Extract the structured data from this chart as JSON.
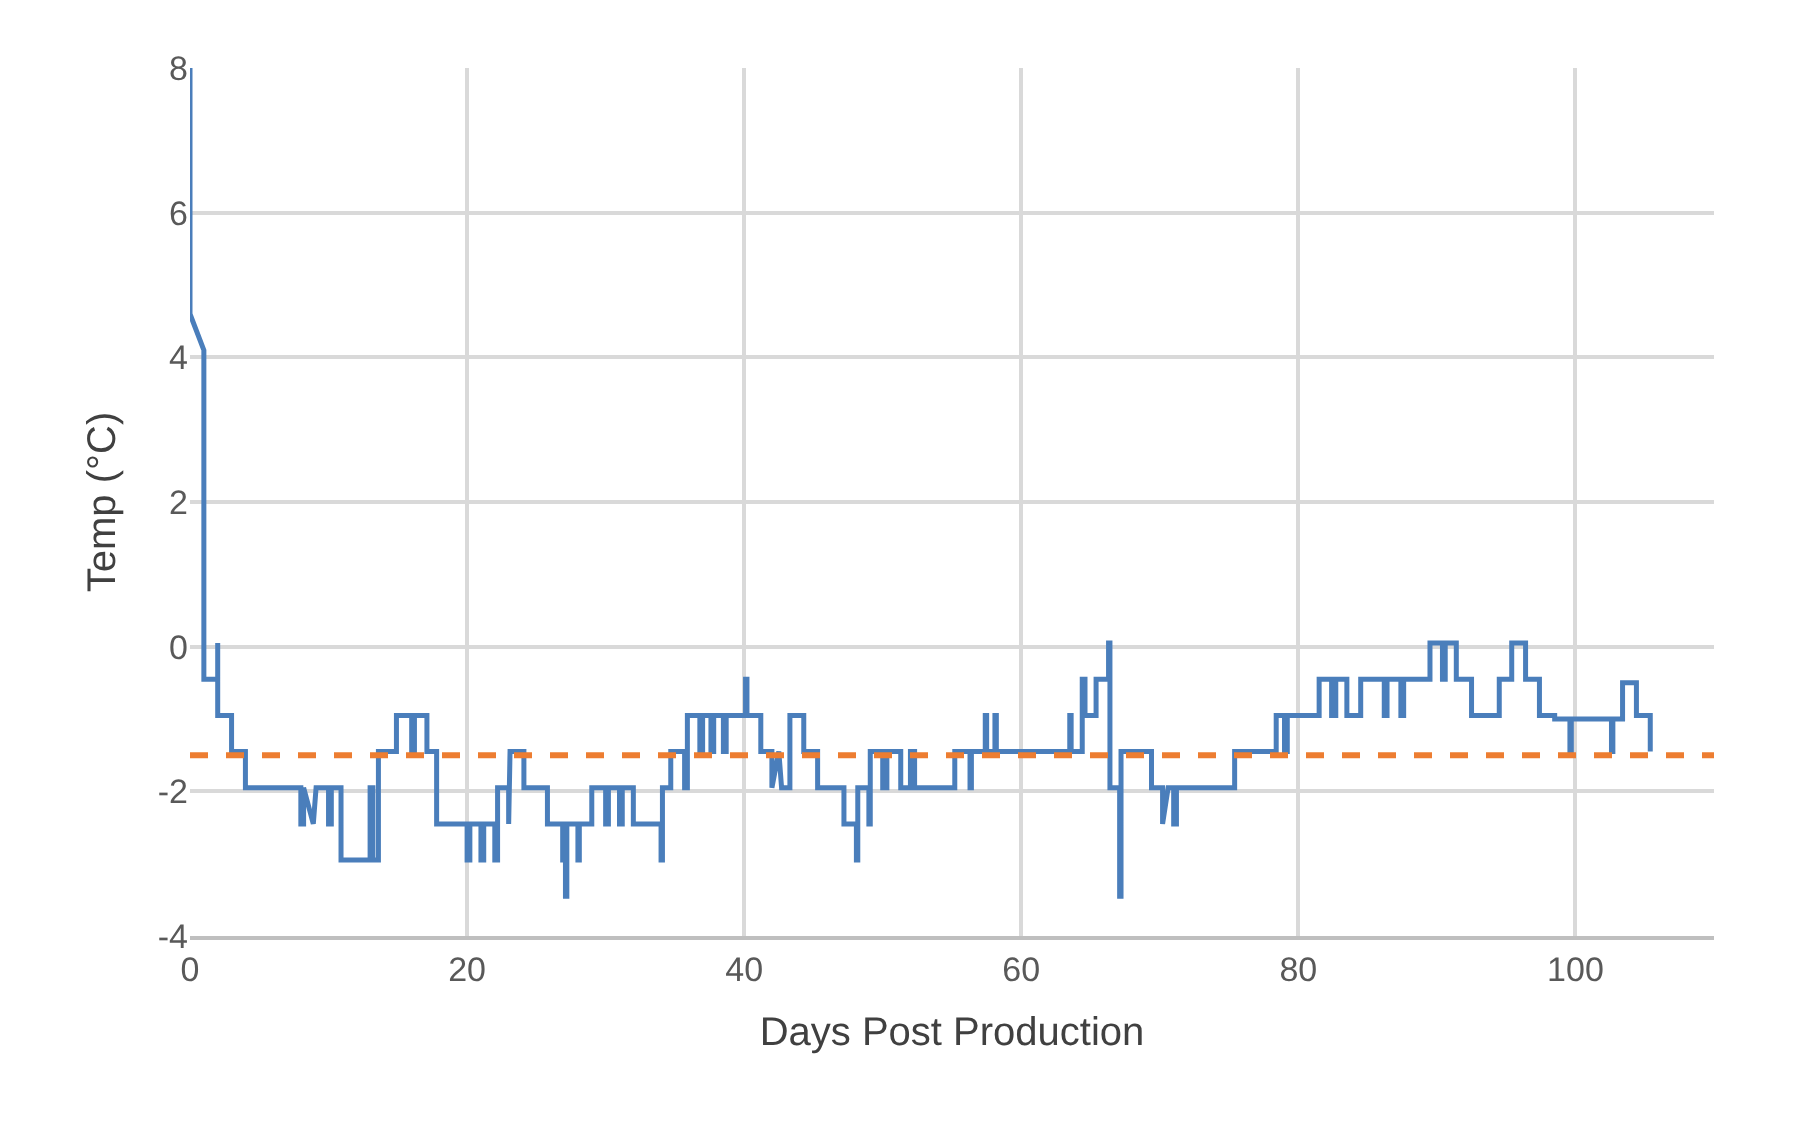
{
  "chart_data": {
    "type": "line",
    "xlabel": "Days Post Production",
    "ylabel": "Temp (°C)",
    "xlim": [
      0,
      110
    ],
    "xticks": [
      0,
      20,
      40,
      60,
      80,
      100
    ],
    "ylim": [
      -4,
      8
    ],
    "yticks": [
      -4,
      -2,
      0,
      2,
      4,
      6,
      8
    ],
    "grid": true,
    "series": [
      {
        "color": "#4a7ebb",
        "line_style": "solid",
        "x": [
          0,
          0,
          1,
          1,
          2,
          2,
          2,
          3,
          3,
          4,
          4,
          8,
          8,
          8.2,
          8.2,
          8.9,
          9.1,
          10,
          10,
          10.2,
          10.2,
          10.9,
          10.9,
          13,
          13,
          13.2,
          13.2,
          13.6,
          13.6,
          14.9,
          14.9,
          16,
          16,
          16.2,
          16.2,
          17.1,
          17.1,
          17.8,
          17.8,
          20,
          20,
          20.2,
          20.2,
          21,
          21,
          21.2,
          21.2,
          22,
          22,
          22.2,
          22.2,
          23,
          23,
          23.1,
          24.1,
          24.1,
          25.8,
          25.8,
          26.9,
          26.9,
          27.1,
          27.1,
          27.2,
          27.2,
          28,
          28,
          28.1,
          28.1,
          29,
          29,
          30,
          30,
          30.2,
          30.2,
          31,
          31,
          31.2,
          31.2,
          32,
          32,
          34,
          34,
          34.1,
          34.1,
          34.7,
          34.7,
          35.7,
          35.7,
          35.9,
          35.9,
          36.8,
          36.8,
          37,
          37,
          37.6,
          37.6,
          37.8,
          37.8,
          38.5,
          38.5,
          38.7,
          38.7,
          40.1,
          40.1,
          40.2,
          40.2,
          41.2,
          41.2,
          42,
          42,
          42.5,
          42.7,
          43.3,
          43.3,
          44.3,
          44.3,
          45.3,
          45.3,
          47.2,
          47.2,
          48.1,
          48.1,
          48.2,
          48.2,
          49,
          49,
          49.1,
          49.1,
          50,
          50,
          50.3,
          50.3,
          51.3,
          51.3,
          52,
          52,
          52.3,
          52.3,
          55.2,
          55.2,
          56.3,
          56.3,
          56.4,
          56.4,
          57.4,
          57.4,
          57.5,
          57.5,
          58.1,
          58.1,
          58.2,
          58.2,
          63.5,
          63.5,
          63.6,
          63.6,
          64.4,
          64.4,
          64.6,
          64.6,
          65.4,
          65.4,
          66.3,
          66.3,
          66.4,
          66.4,
          67.1,
          67.1,
          67.2,
          67.2,
          69.4,
          69.4,
          70.2,
          70.2,
          70.6,
          71,
          71,
          71.2,
          71.2,
          75.4,
          75.4,
          78.4,
          78.4,
          79,
          79,
          79.2,
          79.2,
          81.5,
          81.5,
          82.4,
          82.4,
          82.7,
          82.7,
          83.5,
          83.5,
          84.5,
          84.5,
          86.2,
          86.2,
          86.4,
          86.4,
          87.4,
          87.4,
          87.6,
          87.6,
          89.5,
          89.5,
          90.4,
          90.4,
          90.6,
          90.6,
          91.4,
          91.4,
          92.5,
          92.5,
          94.5,
          94.5,
          95.4,
          95.4,
          96.4,
          96.4,
          97.4,
          97.4,
          98.5,
          98.5,
          99.6,
          99.6,
          99.7,
          99.7,
          102.6,
          102.6,
          102.7,
          102.7,
          103.4,
          103.4,
          104.4,
          104.4,
          105.4,
          105.4
        ],
        "values": [
          8,
          4.6,
          4.1,
          -0.45,
          -0.45,
          0.05,
          -0.95,
          -0.95,
          -1.45,
          -1.45,
          -1.95,
          -1.95,
          -2.45,
          -2.45,
          -1.95,
          -2.45,
          -1.95,
          -1.95,
          -2.45,
          -2.45,
          -1.95,
          -1.95,
          -2.95,
          -2.95,
          -1.95,
          -1.95,
          -2.95,
          -2.95,
          -1.45,
          -1.45,
          -0.95,
          -0.95,
          -1.45,
          -1.45,
          -0.95,
          -0.95,
          -1.45,
          -1.45,
          -2.45,
          -2.45,
          -2.95,
          -2.95,
          -2.45,
          -2.45,
          -2.95,
          -2.95,
          -2.45,
          -2.45,
          -2.95,
          -2.95,
          -1.95,
          -1.95,
          -2.45,
          -1.45,
          -1.45,
          -1.95,
          -1.95,
          -2.45,
          -2.45,
          -2.95,
          -2.95,
          -3.45,
          -3.45,
          -2.45,
          -2.45,
          -2.95,
          -2.95,
          -2.45,
          -2.45,
          -1.95,
          -1.95,
          -2.45,
          -2.45,
          -1.95,
          -1.95,
          -2.45,
          -2.45,
          -1.95,
          -1.95,
          -2.45,
          -2.45,
          -2.95,
          -2.95,
          -1.95,
          -1.95,
          -1.45,
          -1.45,
          -1.95,
          -1.95,
          -0.95,
          -0.95,
          -1.45,
          -1.45,
          -0.95,
          -0.95,
          -1.45,
          -1.45,
          -0.95,
          -0.95,
          -1.45,
          -1.45,
          -0.95,
          -0.95,
          -0.45,
          -0.45,
          -0.95,
          -0.95,
          -1.45,
          -1.45,
          -1.95,
          -1.45,
          -1.95,
          -1.95,
          -0.95,
          -0.95,
          -1.45,
          -1.45,
          -1.95,
          -1.95,
          -2.45,
          -2.45,
          -2.95,
          -2.95,
          -1.95,
          -1.95,
          -2.45,
          -2.45,
          -1.45,
          -1.45,
          -1.95,
          -1.95,
          -1.45,
          -1.45,
          -1.95,
          -1.95,
          -1.45,
          -1.45,
          -1.95,
          -1.95,
          -1.45,
          -1.45,
          -1.95,
          -1.95,
          -1.45,
          -1.45,
          -0.95,
          -0.95,
          -1.45,
          -1.45,
          -0.95,
          -0.95,
          -1.45,
          -1.45,
          -0.95,
          -0.95,
          -1.45,
          -1.45,
          -0.45,
          -0.45,
          -0.95,
          -0.95,
          -0.45,
          -0.45,
          0.05,
          0.05,
          -1.95,
          -1.95,
          -3.45,
          -3.45,
          -1.45,
          -1.45,
          -1.95,
          -1.95,
          -2.45,
          -1.95,
          -1.95,
          -2.45,
          -2.45,
          -1.95,
          -1.95,
          -1.45,
          -1.45,
          -0.95,
          -0.95,
          -1.45,
          -1.45,
          -0.95,
          -0.95,
          -0.45,
          -0.45,
          -0.95,
          -0.95,
          -0.45,
          -0.45,
          -0.95,
          -0.95,
          -0.45,
          -0.45,
          -0.95,
          -0.95,
          -0.45,
          -0.45,
          -0.95,
          -0.95,
          -0.45,
          -0.45,
          0.05,
          0.05,
          -0.45,
          -0.45,
          0.05,
          0.05,
          -0.45,
          -0.45,
          -0.95,
          -0.95,
          -0.45,
          -0.45,
          0.05,
          0.05,
          -0.45,
          -0.45,
          -0.95,
          -0.95,
          -1.0,
          -1.0,
          -1.45,
          -1.45,
          -1.0,
          -1.0,
          -1.45,
          -1.45,
          -1.0,
          -1.0,
          -0.5,
          -0.5,
          -0.95,
          -0.95,
          -1.45
        ]
      }
    ],
    "ref_lines": [
      {
        "axis": "y",
        "value": -1.5,
        "color": "#ed7d31",
        "line_style": "dashed"
      }
    ]
  }
}
